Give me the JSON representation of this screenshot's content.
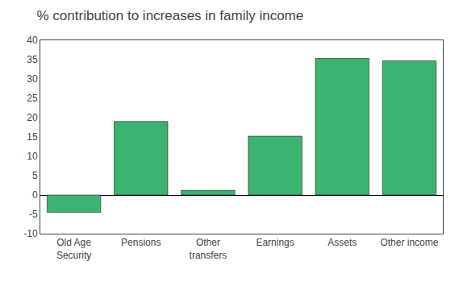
{
  "chart_data": {
    "type": "bar",
    "title": "% contribution to increases in family income",
    "categories": [
      "Old Age\nSecurity",
      "Pensions",
      "Other\ntransfers",
      "Earnings",
      "Assets",
      "Other income"
    ],
    "values": [
      -4.5,
      19.0,
      1.2,
      15.2,
      35.3,
      34.7
    ],
    "color": "#3CB371",
    "ylim": [
      -10,
      40
    ],
    "yticks": [
      -10,
      -5,
      0,
      5,
      10,
      15,
      20,
      25,
      30,
      35,
      40
    ],
    "grid": false
  }
}
